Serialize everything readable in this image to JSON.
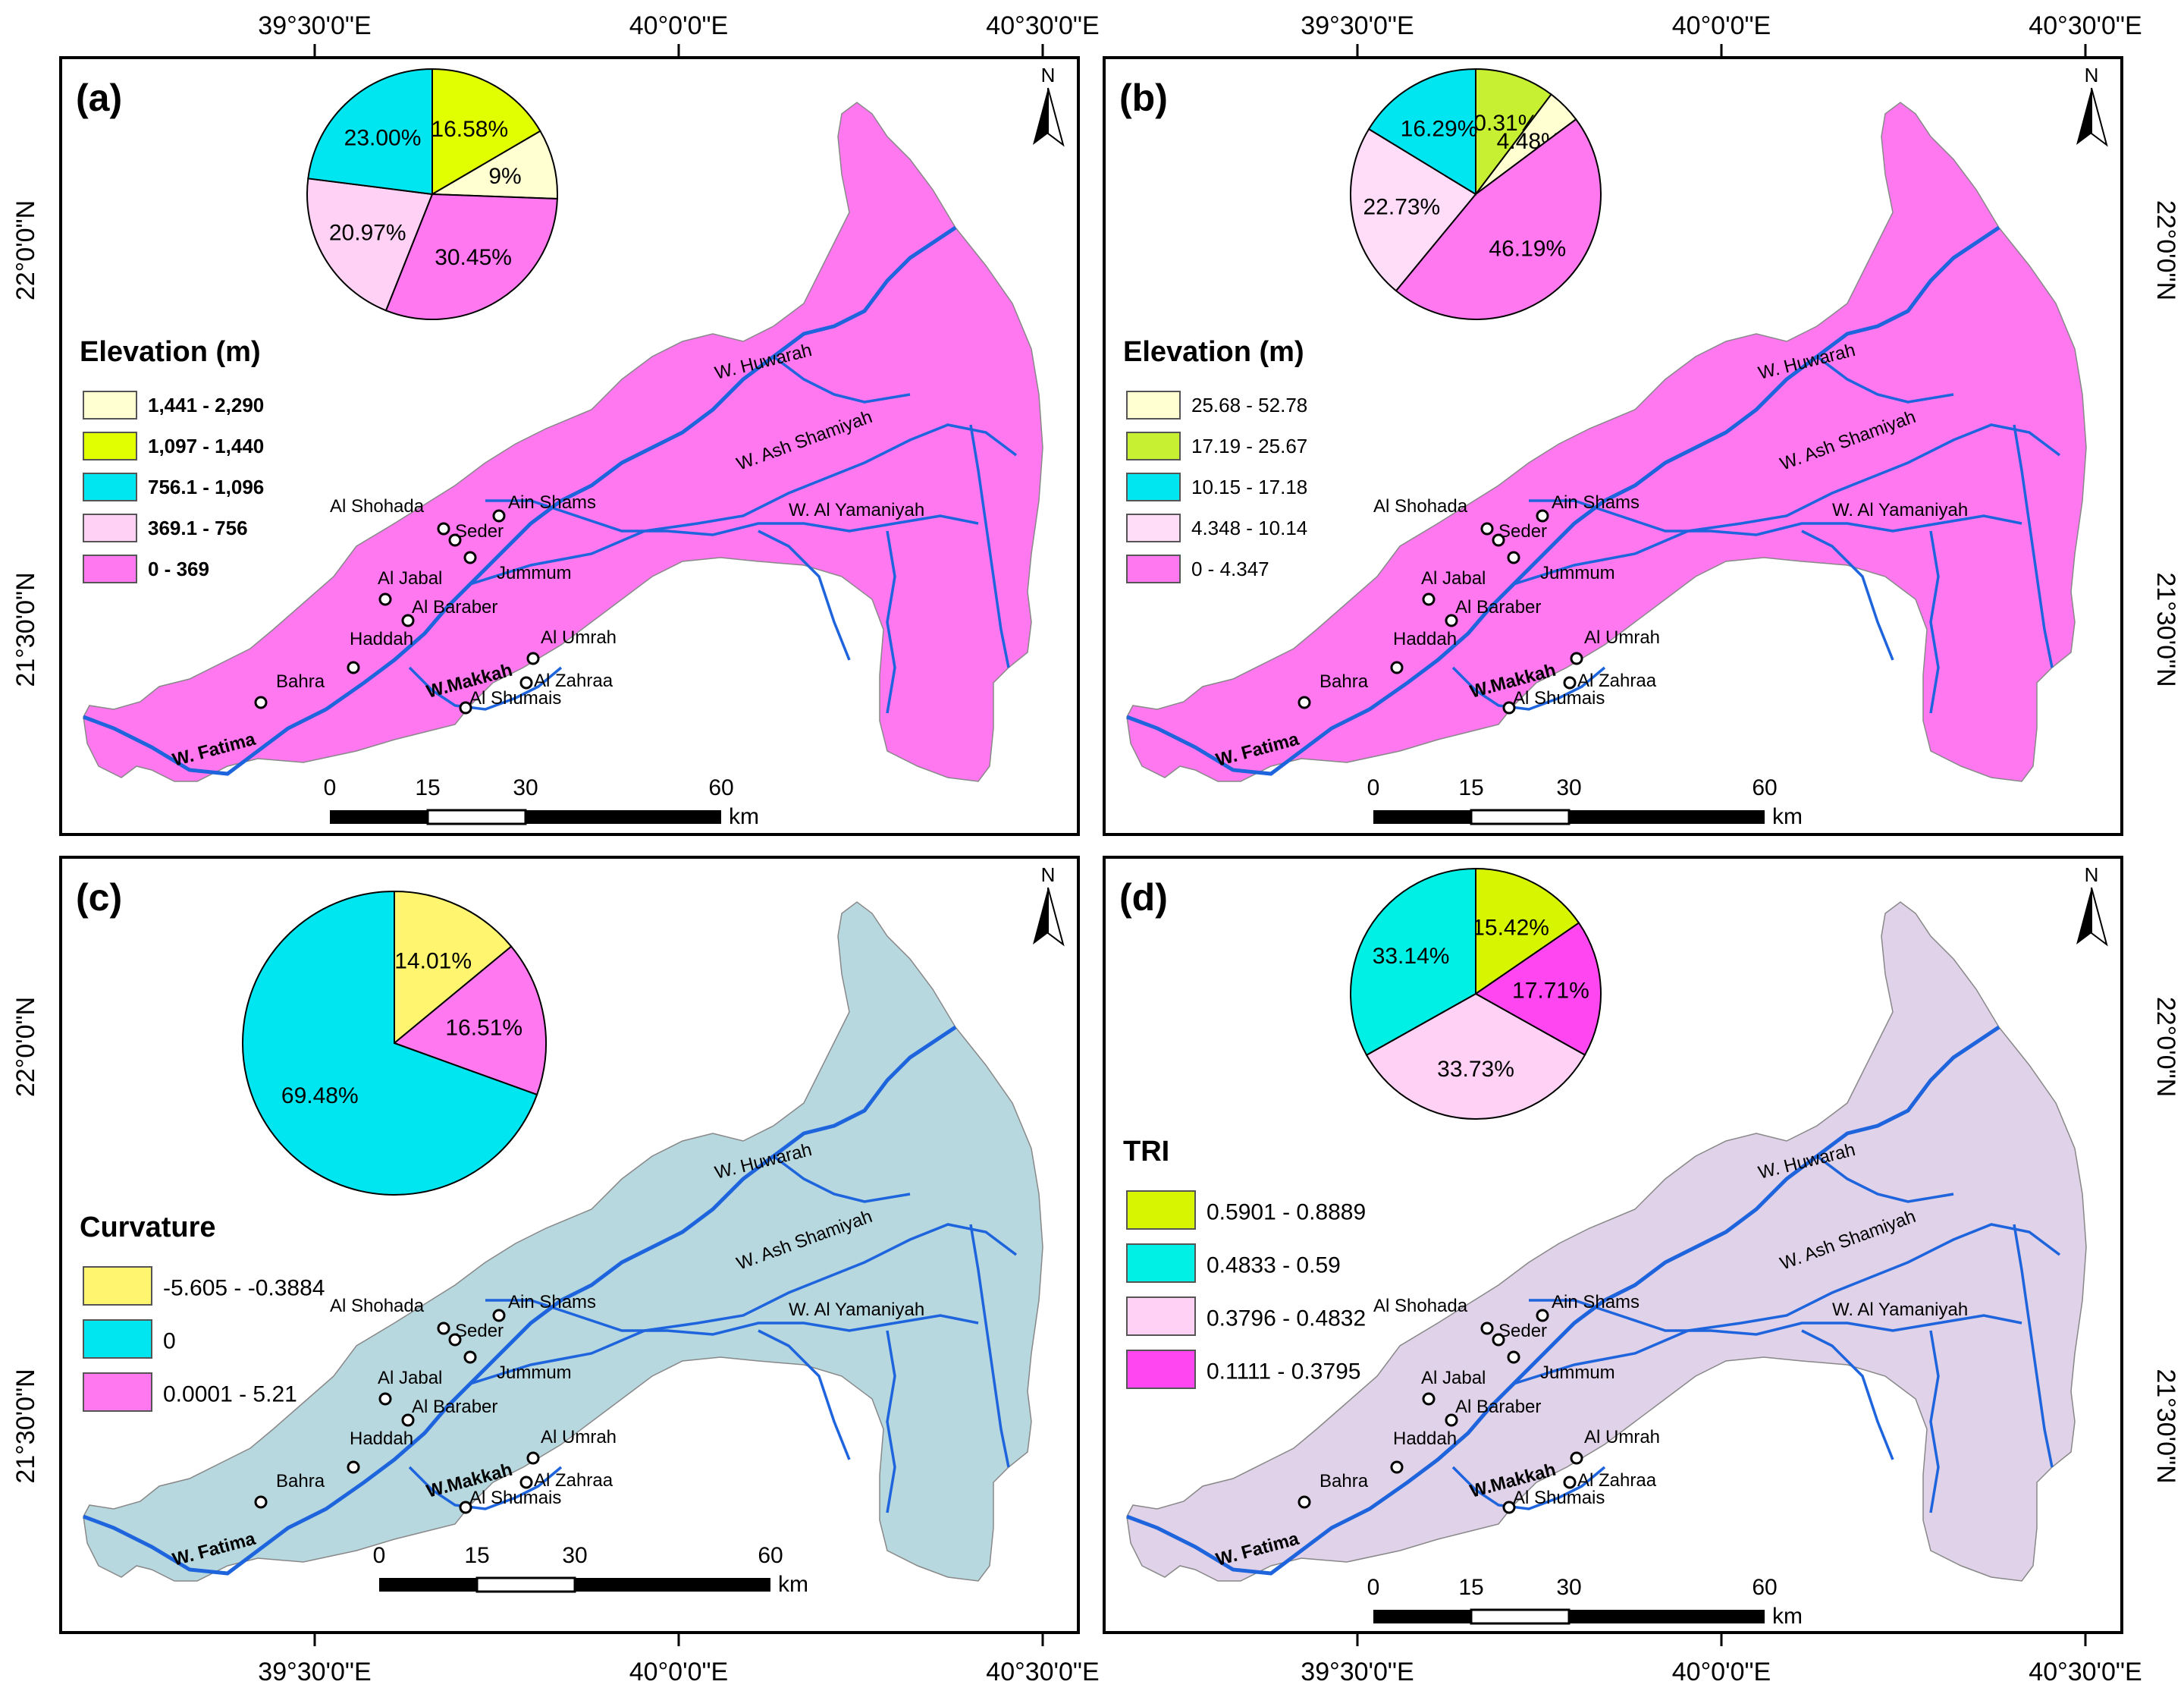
{
  "figure": {
    "top_axis_labels": [
      "39°30'0\"E",
      "40°0'0\"E",
      "40°30'0\"E"
    ],
    "bottom_axis_labels": [
      "39°30'0\"E",
      "40°0'0\"E",
      "40°30'0\"E"
    ],
    "side_axis_labels": [
      "22°0'0\"N",
      "21°30'0\"N"
    ],
    "north_label": "N",
    "scale_labels": [
      "0",
      "15",
      "30",
      "60"
    ],
    "scale_unit": "km"
  },
  "places": [
    {
      "name": "Ain Shams"
    },
    {
      "name": "Al Shohada"
    },
    {
      "name": "Seder"
    },
    {
      "name": "Jummum"
    },
    {
      "name": "Al Jabal"
    },
    {
      "name": "Al Baraber"
    },
    {
      "name": "Haddah"
    },
    {
      "name": "Bahra"
    },
    {
      "name": "Al Umrah"
    },
    {
      "name": "Al Zahraa"
    },
    {
      "name": "Al Shumais"
    }
  ],
  "wadis": [
    "W. Huwarah",
    "W. Ash Shamiyah",
    "W. Al Yamaniyah",
    "W. Fatima",
    "W.Makkah"
  ],
  "panels": [
    {
      "letter": "(a)",
      "legend_title": "Elevation (m)",
      "classes": [
        {
          "label": "1,441 - 2,290",
          "color": "#ffffd2"
        },
        {
          "label": "1,097 - 1,440",
          "color": "#e1ff00"
        },
        {
          "label": "756.1 - 1,096",
          "color": "#00e6f0"
        },
        {
          "label": "369.1 - 756",
          "color": "#ffd2f5"
        },
        {
          "label": "0 - 369",
          "color": "#ff78f0"
        }
      ],
      "pie": [
        {
          "pct": 16.58,
          "label": "16.58%",
          "color": "#e1ff00"
        },
        {
          "pct": 9.0,
          "label": "9%",
          "color": "#ffffd2"
        },
        {
          "pct": 30.45,
          "label": "30.45%",
          "color": "#ff78f0"
        },
        {
          "pct": 20.97,
          "label": "20.97%",
          "color": "#ffd2f5"
        },
        {
          "pct": 23.0,
          "label": "23.00%",
          "color": "#00e6f0"
        }
      ]
    },
    {
      "letter": "(b)",
      "legend_title": "Elevation (m)",
      "classes": [
        {
          "label": "25.68 - 52.78",
          "color": "#ffffd2"
        },
        {
          "label": "17.19 - 25.67",
          "color": "#c8f032"
        },
        {
          "label": "10.15 - 17.18",
          "color": "#00e6f0"
        },
        {
          "label": "4.348 - 10.14",
          "color": "#ffdcf8"
        },
        {
          "label": "0 - 4.347",
          "color": "#ff78f0"
        }
      ],
      "pie": [
        {
          "pct": 10.31,
          "label": "10.31%",
          "color": "#c8f032"
        },
        {
          "pct": 4.48,
          "label": "4.48%",
          "color": "#ffffd2"
        },
        {
          "pct": 46.19,
          "label": "46.19%",
          "color": "#ff78f0"
        },
        {
          "pct": 22.73,
          "label": "22.73%",
          "color": "#ffdcf8"
        },
        {
          "pct": 16.29,
          "label": "16.29%",
          "color": "#00e6f0"
        }
      ]
    },
    {
      "letter": "(c)",
      "legend_title": "Curvature",
      "classes": [
        {
          "label": "-5.605 - -0.3884",
          "color": "#fff56e"
        },
        {
          "label": "0",
          "color": "#00e6f0"
        },
        {
          "label": "0.0001 - 5.21",
          "color": "#ff78f0"
        }
      ],
      "pie": [
        {
          "pct": 14.01,
          "label": "14.01%",
          "color": "#fff56e"
        },
        {
          "pct": 16.51,
          "label": "16.51%",
          "color": "#ff78f0"
        },
        {
          "pct": 69.48,
          "label": "69.48%",
          "color": "#00e6f0"
        }
      ]
    },
    {
      "letter": "(d)",
      "legend_title": "TRI",
      "classes": [
        {
          "label": "0.5901 - 0.8889",
          "color": "#d7f500"
        },
        {
          "label": "0.4833 - 0.59",
          "color": "#00f0e6"
        },
        {
          "label": "0.3796 - 0.4832",
          "color": "#ffd2f5"
        },
        {
          "label": "0.1111 - 0.3795",
          "color": "#ff46f0"
        }
      ],
      "pie": [
        {
          "pct": 15.42,
          "label": "15.42%",
          "color": "#d7f500"
        },
        {
          "pct": 17.71,
          "label": "17.71%",
          "color": "#ff46f0"
        },
        {
          "pct": 33.73,
          "label": "33.73%",
          "color": "#ffd2f5"
        },
        {
          "pct": 33.14,
          "label": "33.14%",
          "color": "#00f0e6"
        }
      ]
    }
  ]
}
